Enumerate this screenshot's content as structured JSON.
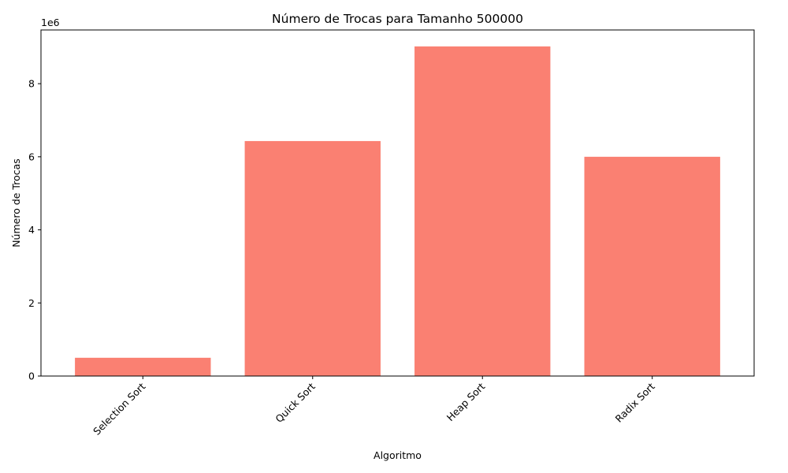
{
  "chart_data": {
    "type": "bar",
    "title": "Número de Trocas para Tamanho 500000",
    "xlabel": "Algoritmo",
    "ylabel": "Número de Trocas",
    "categories": [
      "Selection Sort",
      "Quick Sort",
      "Heap Sort",
      "Radix Sort"
    ],
    "values": [
      499999,
      6430000,
      9020000,
      6000000
    ],
    "ylim": [
      0,
      9470000
    ],
    "y_ticks": [
      0,
      2000000,
      4000000,
      6000000,
      8000000
    ],
    "y_tick_labels": [
      "0",
      "2",
      "4",
      "6",
      "8"
    ],
    "y_offset_label": "1e6",
    "bar_color": "#fa8072",
    "grid": false,
    "x_tick_rotation": "45deg"
  }
}
